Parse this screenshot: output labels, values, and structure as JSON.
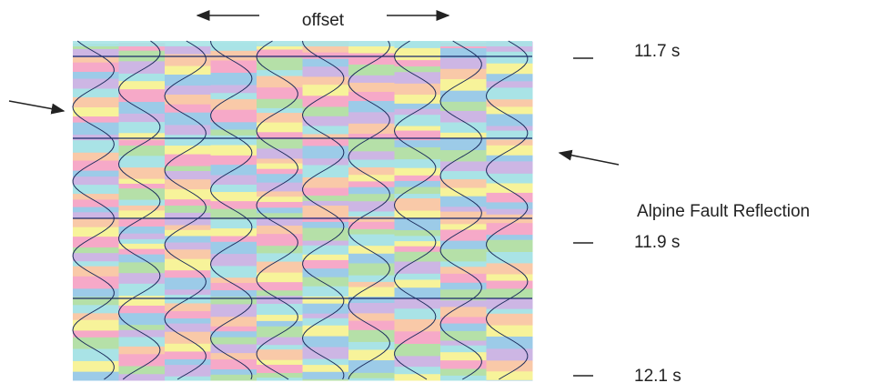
{
  "header": {
    "axis_label": "offset"
  },
  "time_labels": [
    "11.7 s",
    "11.9 s",
    "12.1 s"
  ],
  "annotation": "Alpine Fault Reflection"
}
